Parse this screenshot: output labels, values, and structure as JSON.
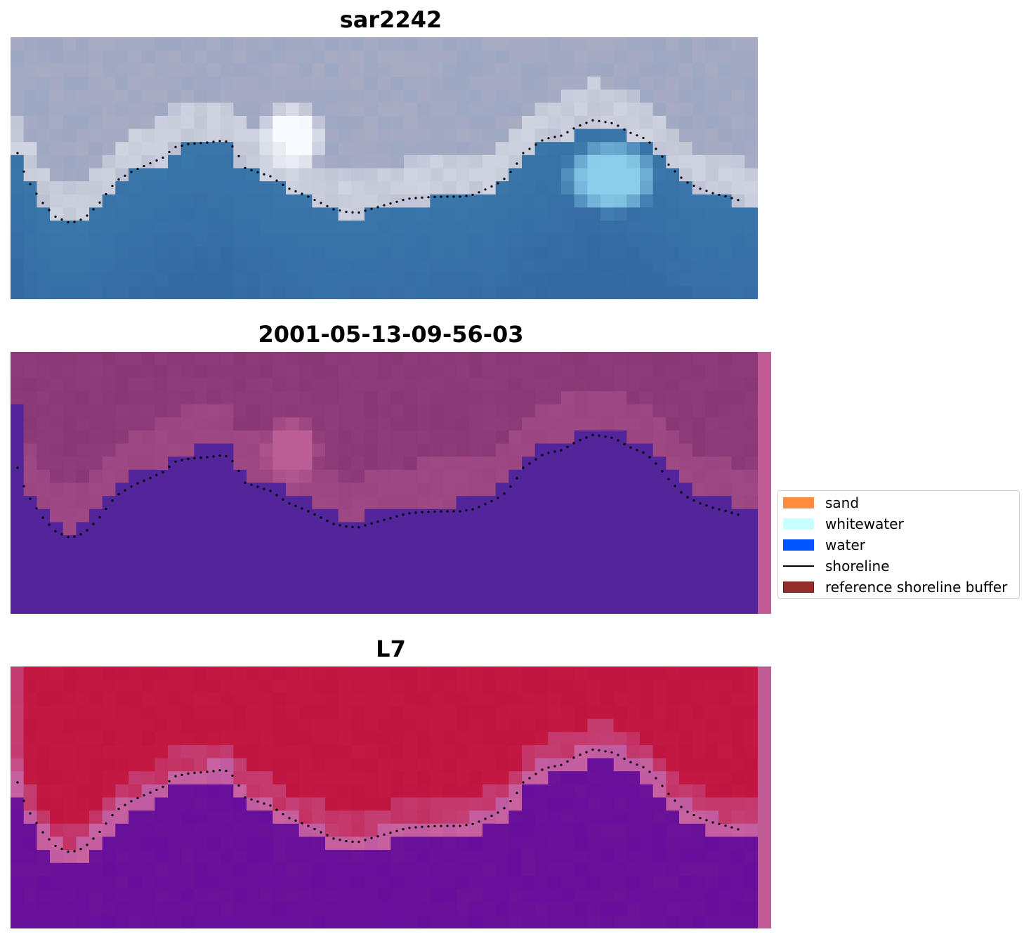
{
  "panels": [
    {
      "title": "sar2242",
      "kind": "rgb"
    },
    {
      "title": "2001-05-13-09-56-03",
      "kind": "classified"
    },
    {
      "title": "L7",
      "kind": "index"
    }
  ],
  "legend": {
    "items": [
      {
        "label": "sand",
        "type": "patch",
        "color": "#ff8c3c",
        "border": "#ff8c3c"
      },
      {
        "label": "whitewater",
        "type": "patch",
        "color": "#c8ffff",
        "border": "#c8ffff"
      },
      {
        "label": "water",
        "type": "patch",
        "color": "#0055ff",
        "border": "#0055ff"
      },
      {
        "label": "shoreline",
        "type": "line",
        "color": "#000000"
      },
      {
        "label": "reference shoreline buffer",
        "type": "patch",
        "color": "#962d2d",
        "border": "#6e1414"
      }
    ]
  },
  "colors": {
    "rgb_land": "#a8acc3",
    "rgb_white": "#dfe3ee",
    "rgb_water": "#3a77aa",
    "class_land": "#8f3c7c",
    "class_water": "#52259a",
    "class_pink": "#bb5e95",
    "index_land": "#bf1540",
    "index_water": "#6a1298",
    "index_pink": "#c9629e",
    "edge_strip": "#c15b95",
    "shoreline": "#000000"
  }
}
